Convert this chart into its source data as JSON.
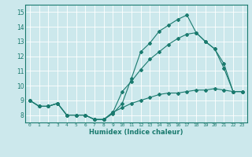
{
  "xlabel": "Humidex (Indice chaleur)",
  "bg_color": "#cce8ec",
  "grid_color": "#ffffff",
  "line_color": "#1a7a6e",
  "xlim": [
    -0.5,
    23.5
  ],
  "ylim": [
    7.5,
    15.5
  ],
  "xticks": [
    0,
    1,
    2,
    3,
    4,
    5,
    6,
    7,
    8,
    9,
    10,
    11,
    12,
    13,
    14,
    15,
    16,
    17,
    18,
    19,
    20,
    21,
    22,
    23
  ],
  "yticks": [
    8,
    9,
    10,
    11,
    12,
    13,
    14,
    15
  ],
  "line1_x": [
    0,
    1,
    2,
    3,
    4,
    5,
    6,
    7,
    8,
    9,
    10,
    11,
    12,
    13,
    14,
    15,
    16,
    17,
    18,
    19,
    20,
    21,
    22,
    23
  ],
  "line1_y": [
    9.0,
    8.6,
    8.6,
    8.8,
    8.0,
    8.0,
    8.0,
    7.7,
    7.7,
    8.1,
    8.8,
    10.5,
    12.3,
    12.9,
    13.7,
    14.1,
    14.5,
    14.8,
    13.6,
    13.0,
    12.5,
    11.2,
    9.6,
    9.6
  ],
  "line2_x": [
    0,
    1,
    2,
    3,
    4,
    5,
    6,
    7,
    8,
    9,
    10,
    11,
    12,
    13,
    14,
    15,
    16,
    17,
    18,
    19,
    20,
    21,
    22,
    23
  ],
  "line2_y": [
    9.0,
    8.6,
    8.6,
    8.8,
    8.0,
    8.0,
    8.0,
    7.7,
    7.7,
    8.2,
    9.6,
    10.3,
    11.1,
    11.8,
    12.3,
    12.8,
    13.2,
    13.5,
    13.6,
    13.0,
    12.5,
    11.5,
    9.6,
    9.6
  ],
  "line3_x": [
    0,
    1,
    2,
    3,
    4,
    5,
    6,
    7,
    8,
    9,
    10,
    11,
    12,
    13,
    14,
    15,
    16,
    17,
    18,
    19,
    20,
    21,
    22,
    23
  ],
  "line3_y": [
    9.0,
    8.6,
    8.6,
    8.8,
    8.0,
    8.0,
    8.0,
    7.7,
    7.7,
    8.2,
    8.5,
    8.8,
    9.0,
    9.2,
    9.4,
    9.5,
    9.5,
    9.6,
    9.7,
    9.7,
    9.8,
    9.7,
    9.6,
    9.6
  ]
}
